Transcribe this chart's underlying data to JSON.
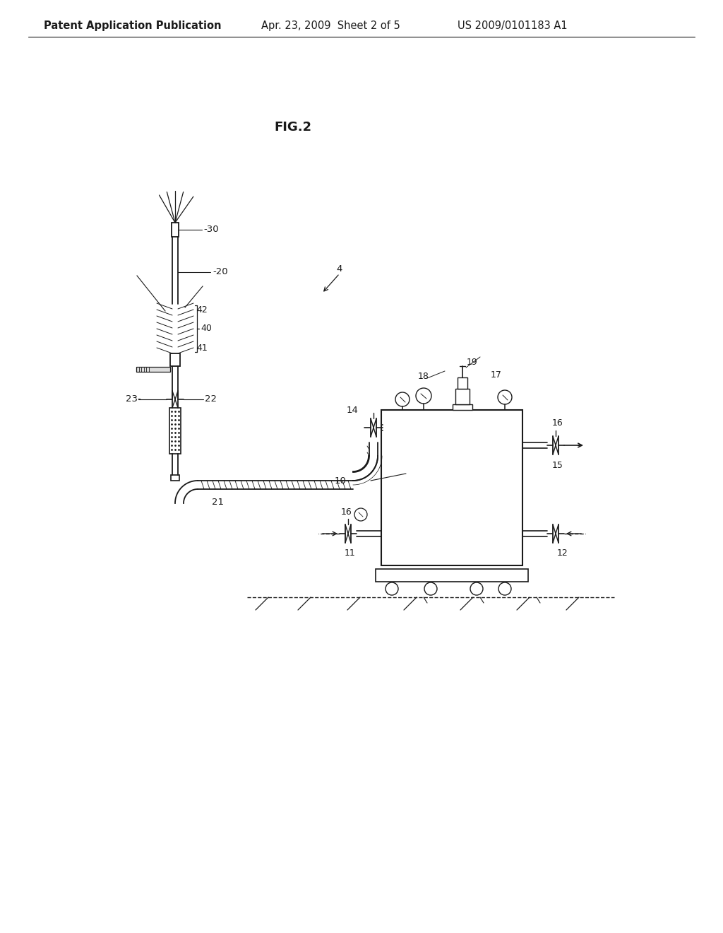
{
  "title": "FIG.2",
  "header_left": "Patent Application Publication",
  "header_mid": "Apr. 23, 2009  Sheet 2 of 5",
  "header_right": "US 2009/0101183 A1",
  "bg_color": "#ffffff",
  "line_color": "#1a1a1a",
  "label_color": "#1a1a1a",
  "header_fontsize": 10.5,
  "title_fontsize": 13,
  "label_fontsize": 9.5
}
